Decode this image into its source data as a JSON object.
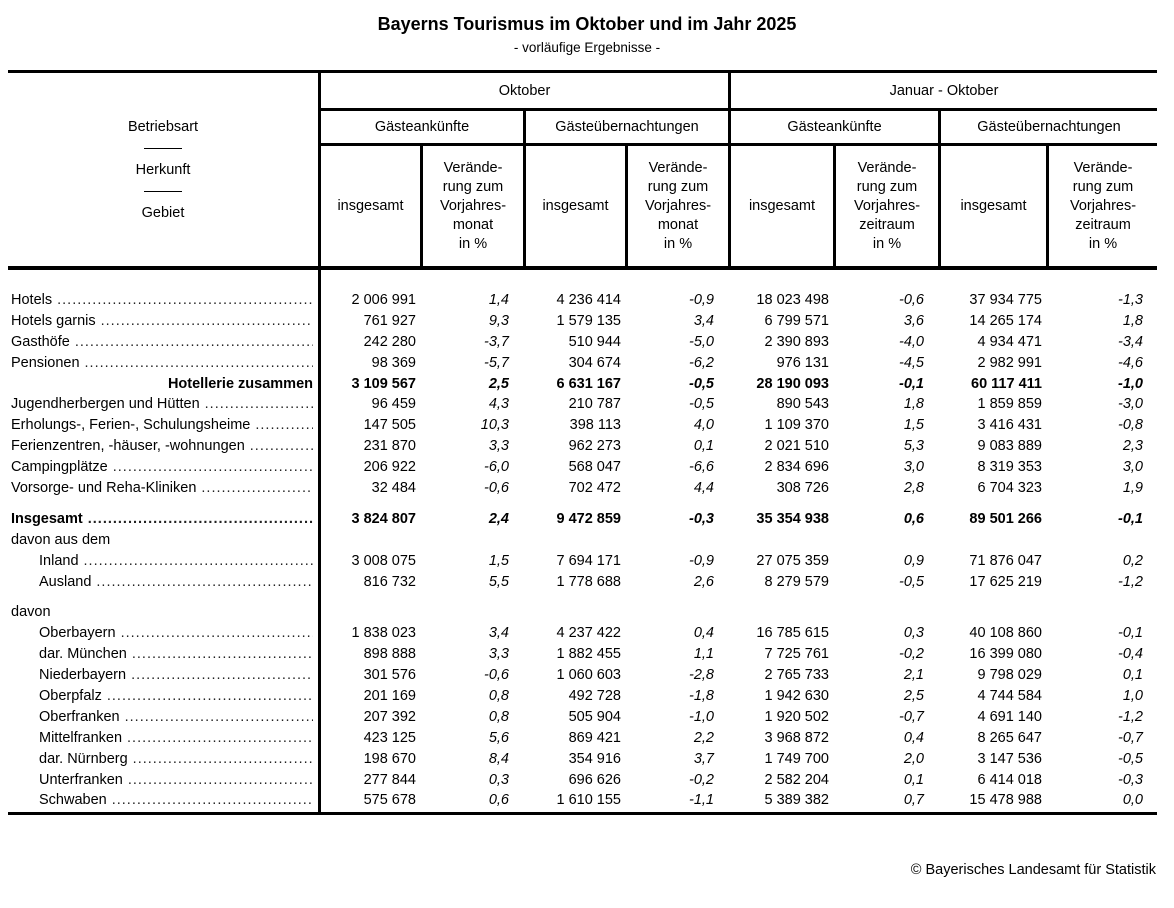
{
  "page": {
    "title": "Bayerns Tourismus im Oktober und im Jahr 2025",
    "subtitle": "- vorläufige Ergebnisse -",
    "footer": "© Bayerisches Landesamt für Statistik"
  },
  "header": {
    "stub": [
      "Betriebsart",
      "Herkunft",
      "Gebiet"
    ],
    "groups": [
      {
        "title": "Oktober",
        "subgroups": [
          "Gästeankünfte",
          "Gästeübernachtungen"
        ],
        "total_label": "insgesamt",
        "change_label": "Verände-\nrung zum\nVorjahres-\nmonat\nin %"
      },
      {
        "title": "Januar - Oktober",
        "subgroups": [
          "Gästeankünfte",
          "Gästeübernachtungen"
        ],
        "total_label": "insgesamt",
        "change_label": "Verände-\nrung zum\nVorjahres-\nzeitraum\nin %"
      }
    ]
  },
  "rows": [
    {
      "label": "Hotels",
      "type": "data",
      "indent": 0,
      "values": [
        "2 006 991",
        "1,4",
        "4 236 414",
        "-0,9",
        "18 023 498",
        "-0,6",
        "37 934 775",
        "-1,3"
      ]
    },
    {
      "label": "Hotels garnis",
      "type": "data",
      "indent": 0,
      "values": [
        "761 927",
        "9,3",
        "1 579 135",
        "3,4",
        "6 799 571",
        "3,6",
        "14 265 174",
        "1,8"
      ]
    },
    {
      "label": "Gasthöfe",
      "type": "data",
      "indent": 0,
      "values": [
        "242 280",
        "-3,7",
        "510 944",
        "-5,0",
        "2 390 893",
        "-4,0",
        "4 934 471",
        "-3,4"
      ]
    },
    {
      "label": "Pensionen",
      "type": "data",
      "indent": 0,
      "values": [
        "98 369",
        "-5,7",
        "304 674",
        "-6,2",
        "976 131",
        "-4,5",
        "2 982 991",
        "-4,6"
      ]
    },
    {
      "label": "Hotellerie zusammen",
      "type": "total-right",
      "indent": 0,
      "values": [
        "3 109 567",
        "2,5",
        "6 631 167",
        "-0,5",
        "28 190 093",
        "-0,1",
        "60 117 411",
        "-1,0"
      ]
    },
    {
      "label": "Jugendherbergen und Hütten",
      "type": "data",
      "indent": 0,
      "values": [
        "96 459",
        "4,3",
        "210 787",
        "-0,5",
        "890 543",
        "1,8",
        "1 859 859",
        "-3,0"
      ]
    },
    {
      "label": "Erholungs-, Ferien-, Schulungsheime",
      "type": "data",
      "indent": 0,
      "values": [
        "147 505",
        "10,3",
        "398 113",
        "4,0",
        "1 109 370",
        "1,5",
        "3 416 431",
        "-0,8"
      ]
    },
    {
      "label": "Ferienzentren, -häuser, -wohnungen",
      "type": "data",
      "indent": 0,
      "values": [
        "231 870",
        "3,3",
        "962 273",
        "0,1",
        "2 021 510",
        "5,3",
        "9 083 889",
        "2,3"
      ]
    },
    {
      "label": "Campingplätze",
      "type": "data",
      "indent": 0,
      "values": [
        "206 922",
        "-6,0",
        "568 047",
        "-6,6",
        "2 834 696",
        "3,0",
        "8 319 353",
        "3,0"
      ]
    },
    {
      "label": "Vorsorge- und Reha-Kliniken",
      "type": "data",
      "indent": 0,
      "values": [
        "32 484",
        "-0,6",
        "702 472",
        "4,4",
        "308 726",
        "2,8",
        "6 704 323",
        "1,9"
      ]
    },
    {
      "type": "spacer"
    },
    {
      "label": "Insgesamt",
      "type": "total",
      "indent": 0,
      "values": [
        "3 824 807",
        "2,4",
        "9 472 859",
        "-0,3",
        "35 354 938",
        "0,6",
        "89 501 266",
        "-0,1"
      ]
    },
    {
      "label": "davon aus dem",
      "type": "section",
      "indent": 0
    },
    {
      "label": "Inland",
      "type": "data",
      "indent": 1,
      "values": [
        "3 008 075",
        "1,5",
        "7 694 171",
        "-0,9",
        "27 075 359",
        "0,9",
        "71 876 047",
        "0,2"
      ]
    },
    {
      "label": "Ausland",
      "type": "data",
      "indent": 1,
      "values": [
        "816 732",
        "5,5",
        "1 778 688",
        "2,6",
        "8 279 579",
        "-0,5",
        "17 625 219",
        "-1,2"
      ]
    },
    {
      "type": "spacer"
    },
    {
      "label": "davon",
      "type": "section",
      "indent": 0
    },
    {
      "label": "Oberbayern",
      "type": "data",
      "indent": 1,
      "values": [
        "1 838 023",
        "3,4",
        "4 237 422",
        "0,4",
        "16 785 615",
        "0,3",
        "40 108 860",
        "-0,1"
      ]
    },
    {
      "label": "dar. München",
      "type": "data",
      "indent": 1,
      "values": [
        "898 888",
        "3,3",
        "1 882 455",
        "1,1",
        "7 725 761",
        "-0,2",
        "16 399 080",
        "-0,4"
      ]
    },
    {
      "label": "Niederbayern",
      "type": "data",
      "indent": 1,
      "values": [
        "301 576",
        "-0,6",
        "1 060 603",
        "-2,8",
        "2 765 733",
        "2,1",
        "9 798 029",
        "0,1"
      ]
    },
    {
      "label": "Oberpfalz",
      "type": "data",
      "indent": 1,
      "values": [
        "201 169",
        "0,8",
        "492 728",
        "-1,8",
        "1 942 630",
        "2,5",
        "4 744 584",
        "1,0"
      ]
    },
    {
      "label": "Oberfranken",
      "type": "data",
      "indent": 1,
      "values": [
        "207 392",
        "0,8",
        "505 904",
        "-1,0",
        "1 920 502",
        "-0,7",
        "4 691 140",
        "-1,2"
      ]
    },
    {
      "label": "Mittelfranken",
      "type": "data",
      "indent": 1,
      "values": [
        "423 125",
        "5,6",
        "869 421",
        "2,2",
        "3 968 872",
        "0,4",
        "8 265 647",
        "-0,7"
      ]
    },
    {
      "label": "dar. Nürnberg",
      "type": "data",
      "indent": 1,
      "values": [
        "198 670",
        "8,4",
        "354 916",
        "3,7",
        "1 749 700",
        "2,0",
        "3 147 536",
        "-0,5"
      ]
    },
    {
      "label": "Unterfranken",
      "type": "data",
      "indent": 1,
      "values": [
        "277 844",
        "0,3",
        "696 626",
        "-0,2",
        "2 582 204",
        "0,1",
        "6 414 018",
        "-0,3"
      ]
    },
    {
      "label": "Schwaben",
      "type": "data",
      "indent": 1,
      "values": [
        "575 678",
        "0,6",
        "1 610 155",
        "-1,1",
        "5 389 382",
        "0,7",
        "15 478 988",
        "0,0"
      ]
    }
  ]
}
